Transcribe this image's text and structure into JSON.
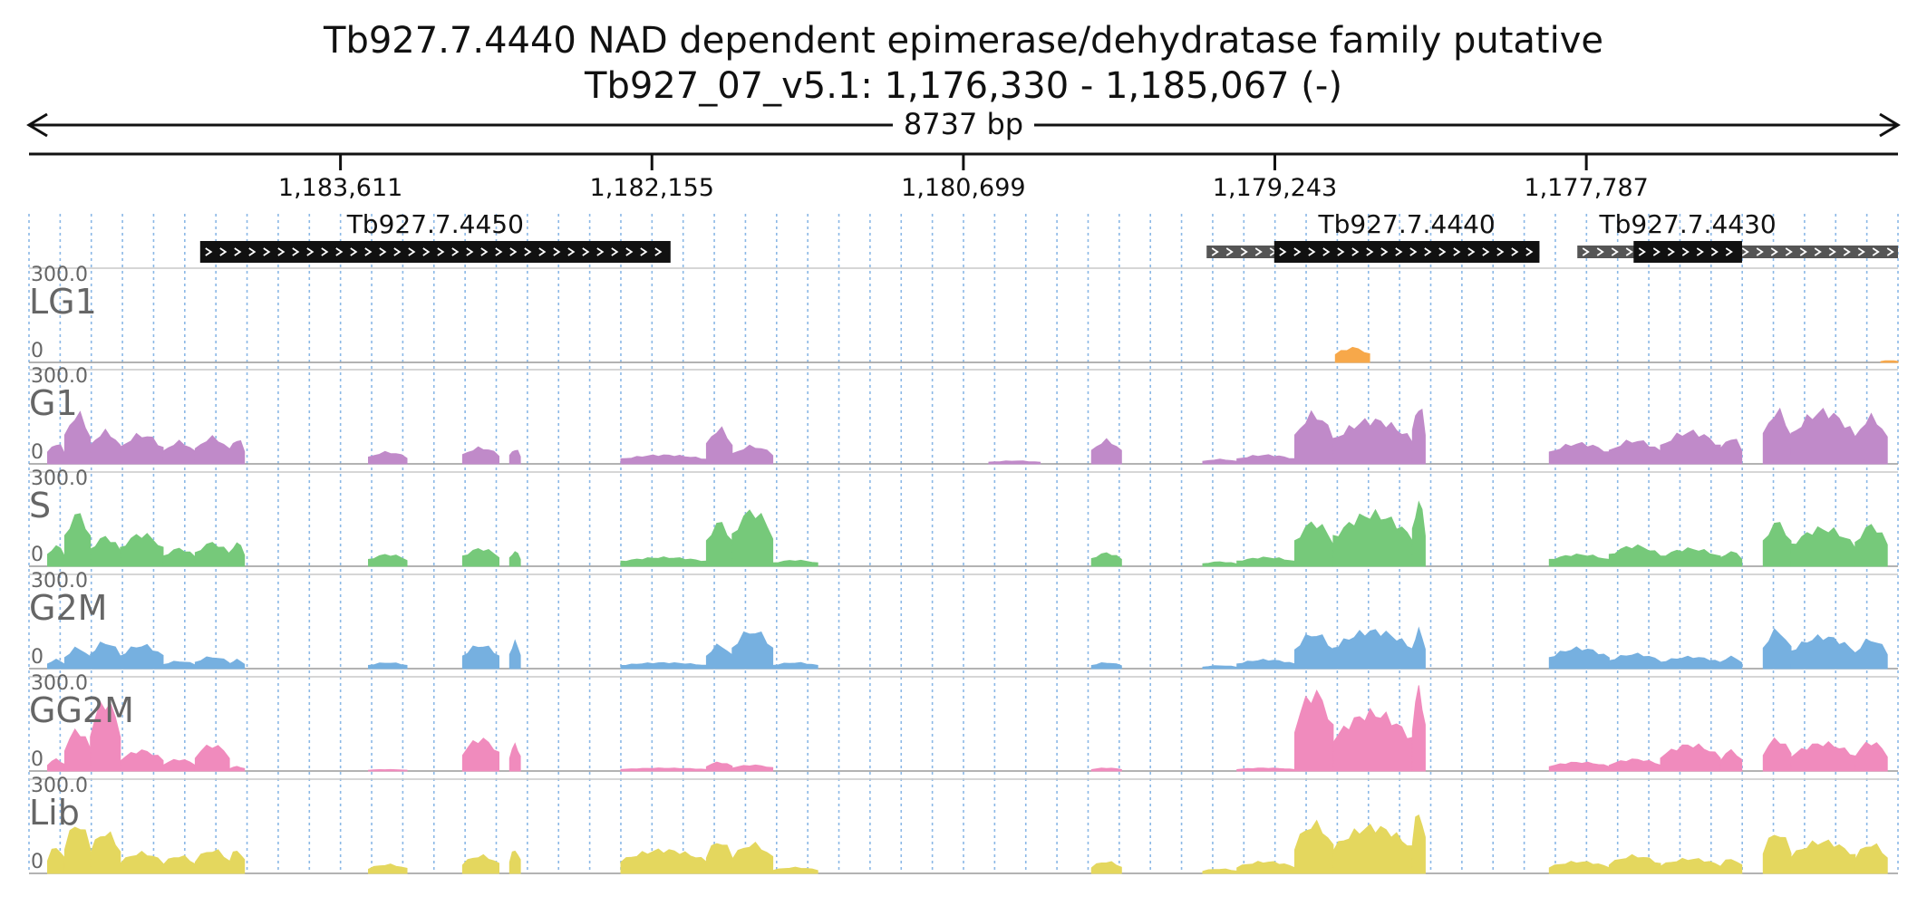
{
  "title": {
    "line1": "Tb927.7.4440  NAD dependent epimerase/dehydratase family  putative",
    "line2": "Tb927_07_v5.1: 1,176,330 - 1,185,067 (-)"
  },
  "span_label": "8737 bp",
  "chart_data": {
    "type": "area",
    "title": "Tb927.7.4440  NAD dependent epimerase/dehydratase family  putative",
    "region": {
      "chrom": "Tb927_07_v5.1",
      "start": 1176330,
      "end": 1185067,
      "strand": "-"
    },
    "x_axis": {
      "orientation": "reversed",
      "xlim": [
        1185067,
        1176330
      ]
    },
    "ticks": [
      {
        "pos": 1183611,
        "label": "1,183,611"
      },
      {
        "pos": 1182155,
        "label": "1,182,155"
      },
      {
        "pos": 1180699,
        "label": "1,180,699"
      },
      {
        "pos": 1179243,
        "label": "1,179,243"
      },
      {
        "pos": 1177787,
        "label": "1,177,787"
      }
    ],
    "genes": [
      {
        "name": "Tb927.7.4450",
        "start": 1182068,
        "end": 1184267,
        "cds": [
          1182068,
          1184267
        ]
      },
      {
        "name": "Tb927.7.4440",
        "start": 1178006,
        "end": 1179562,
        "cds": [
          1178006,
          1179246
        ]
      },
      {
        "name": "Tb927.7.4430",
        "start": 1176330,
        "end": 1177829,
        "cds": [
          1177059,
          1177566
        ]
      }
    ],
    "tracks": [
      {
        "name": "LG1",
        "color": "#f7a84a",
        "ylim": [
          0,
          300.0
        ],
        "ymax_label": "300.0",
        "ymin_label": "0",
        "peaks": [
          [
            1178960,
            1178800,
            50
          ],
          [
            1176410,
            1176330,
            6
          ]
        ]
      },
      {
        "name": "G1",
        "color": "#c08ac9",
        "ylim": [
          0,
          300.0
        ],
        "ymax_label": "300.0",
        "ymin_label": "0",
        "peaks": [
          [
            1184980,
            1184900,
            70
          ],
          [
            1184900,
            1184780,
            170
          ],
          [
            1184780,
            1184640,
            110
          ],
          [
            1184640,
            1184440,
            100
          ],
          [
            1184440,
            1184290,
            75
          ],
          [
            1184290,
            1184130,
            90
          ],
          [
            1184130,
            1184060,
            85
          ],
          [
            1183480,
            1183300,
            40
          ],
          [
            1183040,
            1182870,
            55
          ],
          [
            1182820,
            1182770,
            50
          ],
          [
            1182300,
            1181900,
            30
          ],
          [
            1181900,
            1181780,
            120
          ],
          [
            1181780,
            1181590,
            60
          ],
          [
            1180580,
            1180340,
            10
          ],
          [
            1180100,
            1179960,
            80
          ],
          [
            1179580,
            1179420,
            15
          ],
          [
            1179420,
            1179150,
            30
          ],
          [
            1179150,
            1178970,
            170
          ],
          [
            1178970,
            1178600,
            150
          ],
          [
            1178600,
            1178540,
            200
          ],
          [
            1177960,
            1177680,
            70
          ],
          [
            1177680,
            1177440,
            80
          ],
          [
            1177440,
            1177160,
            110
          ],
          [
            1177160,
            1177060,
            90
          ],
          [
            1176960,
            1176830,
            180
          ],
          [
            1176830,
            1176530,
            180
          ],
          [
            1176530,
            1176380,
            160
          ]
        ]
      },
      {
        "name": "S",
        "color": "#76c97a",
        "ylim": [
          0,
          300.0
        ],
        "ymax_label": "300.0",
        "ymin_label": "0",
        "peaks": [
          [
            1184980,
            1184900,
            70
          ],
          [
            1184900,
            1184780,
            180
          ],
          [
            1184780,
            1184640,
            100
          ],
          [
            1184640,
            1184440,
            110
          ],
          [
            1184440,
            1184290,
            60
          ],
          [
            1184290,
            1184130,
            80
          ],
          [
            1184130,
            1184060,
            80
          ],
          [
            1183480,
            1183300,
            40
          ],
          [
            1183040,
            1182870,
            60
          ],
          [
            1182820,
            1182770,
            50
          ],
          [
            1182300,
            1181900,
            30
          ],
          [
            1181900,
            1181780,
            150
          ],
          [
            1181780,
            1181590,
            190
          ],
          [
            1181590,
            1181380,
            20
          ],
          [
            1180100,
            1179960,
            45
          ],
          [
            1179580,
            1179420,
            15
          ],
          [
            1179420,
            1179150,
            30
          ],
          [
            1179150,
            1178970,
            150
          ],
          [
            1178970,
            1178600,
            180
          ],
          [
            1178600,
            1178540,
            220
          ],
          [
            1177960,
            1177680,
            40
          ],
          [
            1177680,
            1177440,
            70
          ],
          [
            1177440,
            1177160,
            60
          ],
          [
            1177160,
            1177060,
            50
          ],
          [
            1176960,
            1176830,
            150
          ],
          [
            1176830,
            1176530,
            130
          ],
          [
            1176530,
            1176380,
            140
          ]
        ]
      },
      {
        "name": "G2M",
        "color": "#76b0e0",
        "ylim": [
          0,
          300.0
        ],
        "ymax_label": "300.0",
        "ymin_label": "0",
        "peaks": [
          [
            1184980,
            1184900,
            30
          ],
          [
            1184900,
            1184780,
            70
          ],
          [
            1184780,
            1184640,
            90
          ],
          [
            1184640,
            1184440,
            80
          ],
          [
            1184440,
            1184290,
            25
          ],
          [
            1184290,
            1184130,
            40
          ],
          [
            1184130,
            1184060,
            30
          ],
          [
            1183480,
            1183300,
            20
          ],
          [
            1183040,
            1182870,
            80
          ],
          [
            1182820,
            1182770,
            90
          ],
          [
            1182300,
            1181900,
            20
          ],
          [
            1181900,
            1181780,
            80
          ],
          [
            1181780,
            1181590,
            130
          ],
          [
            1181590,
            1181380,
            20
          ],
          [
            1180100,
            1179960,
            20
          ],
          [
            1179580,
            1179420,
            10
          ],
          [
            1179420,
            1179150,
            30
          ],
          [
            1179150,
            1178970,
            120
          ],
          [
            1178970,
            1178600,
            130
          ],
          [
            1178600,
            1178540,
            130
          ],
          [
            1177960,
            1177680,
            70
          ],
          [
            1177680,
            1177440,
            50
          ],
          [
            1177440,
            1177160,
            40
          ],
          [
            1177160,
            1177060,
            40
          ],
          [
            1176960,
            1176830,
            130
          ],
          [
            1176830,
            1176530,
            110
          ],
          [
            1176530,
            1176380,
            100
          ]
        ]
      },
      {
        "name": "GG2M",
        "color": "#f08bbd",
        "ylim": [
          0,
          300.0
        ],
        "ymax_label": "300.0",
        "ymin_label": "0",
        "peaks": [
          [
            1184980,
            1184900,
            40
          ],
          [
            1184900,
            1184780,
            140
          ],
          [
            1184780,
            1184640,
            240
          ],
          [
            1184640,
            1184440,
            70
          ],
          [
            1184440,
            1184290,
            40
          ],
          [
            1184290,
            1184130,
            90
          ],
          [
            1184130,
            1184060,
            15
          ],
          [
            1183480,
            1183300,
            5
          ],
          [
            1183040,
            1182870,
            110
          ],
          [
            1182820,
            1182770,
            90
          ],
          [
            1182300,
            1181900,
            10
          ],
          [
            1181900,
            1181780,
            30
          ],
          [
            1181780,
            1181590,
            20
          ],
          [
            1180100,
            1179960,
            10
          ],
          [
            1179420,
            1179150,
            10
          ],
          [
            1179150,
            1178970,
            270
          ],
          [
            1178970,
            1178600,
            200
          ],
          [
            1178600,
            1178540,
            280
          ],
          [
            1177960,
            1177680,
            30
          ],
          [
            1177680,
            1177440,
            40
          ],
          [
            1177440,
            1177160,
            90
          ],
          [
            1177160,
            1177060,
            70
          ],
          [
            1176960,
            1176830,
            110
          ],
          [
            1176830,
            1176530,
            95
          ],
          [
            1176530,
            1176380,
            100
          ]
        ]
      },
      {
        "name": "Lib",
        "color": "#e4d75e",
        "ylim": [
          0,
          300.0
        ],
        "ymax_label": "300.0",
        "ymin_label": "0",
        "peaks": [
          [
            1184980,
            1184900,
            90
          ],
          [
            1184900,
            1184780,
            170
          ],
          [
            1184780,
            1184640,
            140
          ],
          [
            1184640,
            1184440,
            70
          ],
          [
            1184440,
            1184290,
            60
          ],
          [
            1184290,
            1184130,
            80
          ],
          [
            1184130,
            1184060,
            80
          ],
          [
            1183480,
            1183300,
            30
          ],
          [
            1183040,
            1182870,
            60
          ],
          [
            1182820,
            1182770,
            80
          ],
          [
            1182300,
            1181900,
            80
          ],
          [
            1181900,
            1181780,
            110
          ],
          [
            1181780,
            1181590,
            100
          ],
          [
            1181590,
            1181380,
            20
          ],
          [
            1180100,
            1179960,
            40
          ],
          [
            1179580,
            1179420,
            15
          ],
          [
            1179420,
            1179150,
            40
          ],
          [
            1179150,
            1178970,
            170
          ],
          [
            1178970,
            1178600,
            160
          ],
          [
            1178600,
            1178540,
            210
          ],
          [
            1177960,
            1177680,
            40
          ],
          [
            1177680,
            1177440,
            60
          ],
          [
            1177440,
            1177160,
            50
          ],
          [
            1177160,
            1177060,
            50
          ],
          [
            1176960,
            1176830,
            140
          ],
          [
            1176830,
            1176530,
            110
          ],
          [
            1176530,
            1176380,
            100
          ]
        ]
      }
    ]
  }
}
